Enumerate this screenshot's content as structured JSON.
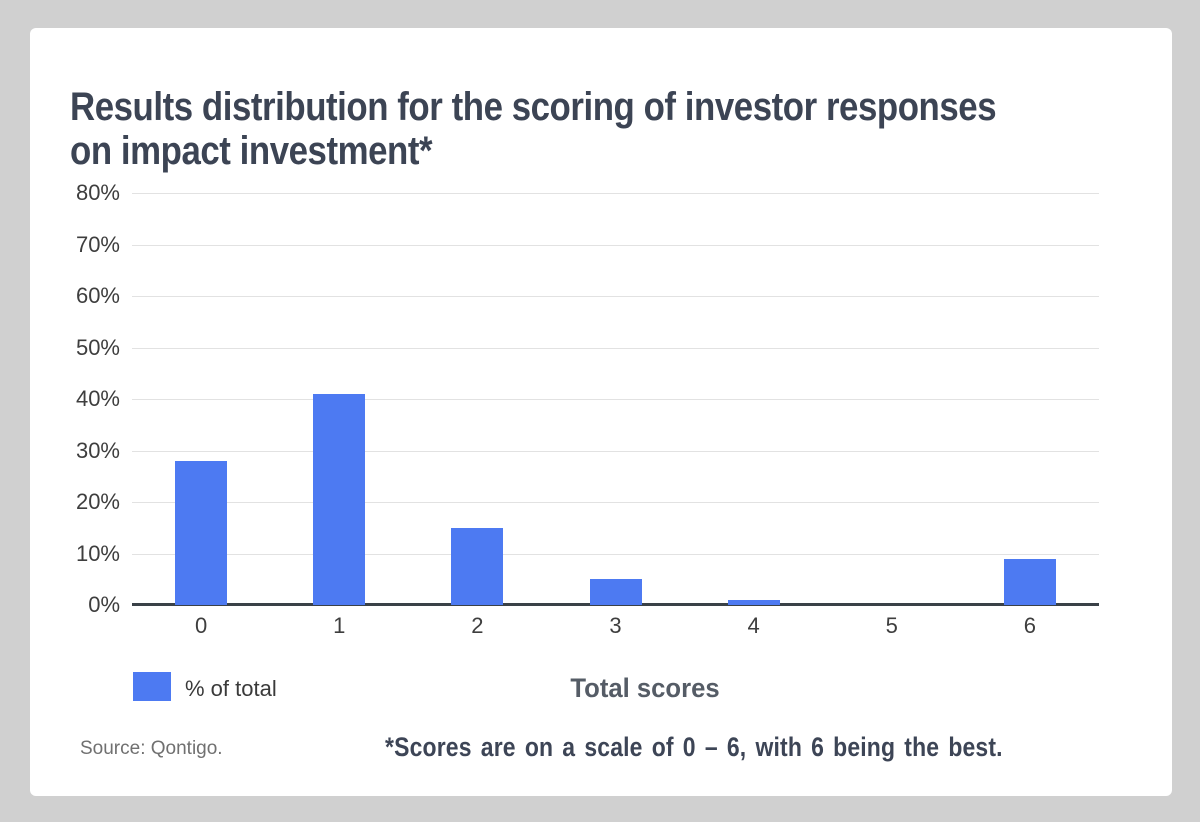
{
  "title": "Results distribution for the scoring of investor responses on impact investment*",
  "chart_data": {
    "type": "bar",
    "categories": [
      "0",
      "1",
      "2",
      "3",
      "4",
      "5",
      "6"
    ],
    "series": [
      {
        "name": "% of total",
        "values": [
          28,
          41,
          15,
          5,
          1,
          0,
          9
        ]
      }
    ],
    "title": "Results distribution for the scoring of investor responses on impact investment*",
    "xlabel": "Total scores",
    "ylabel": "",
    "ylim": [
      0,
      80
    ],
    "ytick_step": 10,
    "ytick_suffix": "%",
    "grid": true,
    "legend_position": "bottom-left",
    "bar_color": "#4d7af2"
  },
  "legend": {
    "label": "% of total",
    "swatch_color": "#4d7af2"
  },
  "source": "Source: Qontigo.",
  "footnote": "*Scores are on a scale of 0 – 6, with 6 being the best.",
  "colors": {
    "bar": "#4d7af2",
    "title_text": "#3c4454",
    "axis_text": "#3e3e3e",
    "grid_line": "#e2e2e2",
    "baseline": "#3a4147",
    "frame_bg": "#d0d0d0",
    "card_bg": "#ffffff",
    "source_text": "#707070",
    "xaxis_title_text": "#555c66",
    "footnote_text": "#3d4556"
  }
}
